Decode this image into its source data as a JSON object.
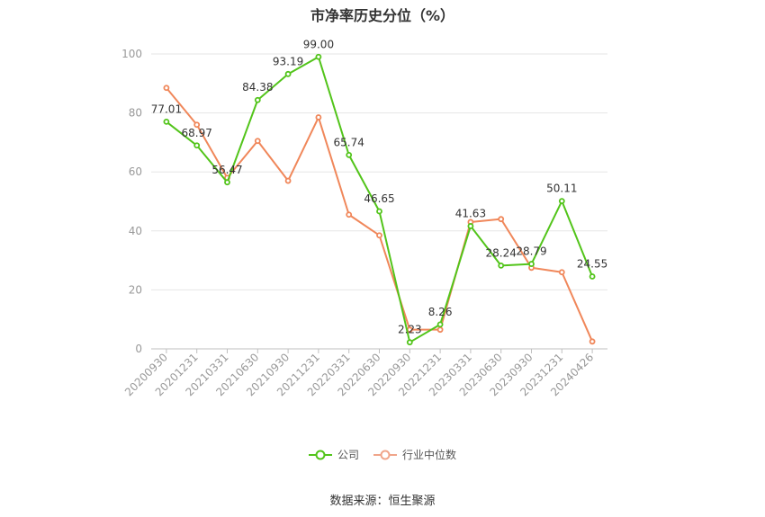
{
  "title": "市净率历史分位（%）",
  "source": "数据来源：恒生聚源",
  "colors": {
    "company": "#52c41a",
    "industry": "#f0875a",
    "grid": "#e6e6e6",
    "axis": "#999999"
  },
  "chart_data": {
    "type": "line",
    "categories": [
      "20200930",
      "20201231",
      "20210331",
      "20210630",
      "20210930",
      "20211231",
      "20220331",
      "20220630",
      "20220930",
      "20221231",
      "20230331",
      "20230630",
      "20230930",
      "20231231",
      "20240426"
    ],
    "ylim": [
      0,
      100
    ],
    "yticks": [
      0,
      20,
      40,
      60,
      80,
      100
    ],
    "grid": true,
    "legend_position": "bottom",
    "series": [
      {
        "name": "公司",
        "color": "#52c41a",
        "values": [
          77.01,
          68.97,
          56.47,
          84.38,
          93.19,
          99.0,
          65.74,
          46.65,
          2.23,
          8.26,
          41.63,
          28.24,
          28.79,
          50.11,
          24.55
        ],
        "labels": [
          "77.01",
          "68.97",
          "56.47",
          "84.38",
          "93.19",
          "99.00",
          "65.74",
          "46.65",
          "2.23",
          "8.26",
          "41.63",
          "28.24",
          "28.79",
          "50.11",
          "24.55"
        ]
      },
      {
        "name": "行业中位数",
        "color": "#f0875a",
        "values": [
          88.5,
          76.0,
          58.0,
          70.5,
          57.0,
          78.5,
          45.5,
          38.5,
          6.5,
          6.5,
          43.0,
          44.0,
          27.5,
          26.0,
          2.5
        ]
      }
    ]
  }
}
